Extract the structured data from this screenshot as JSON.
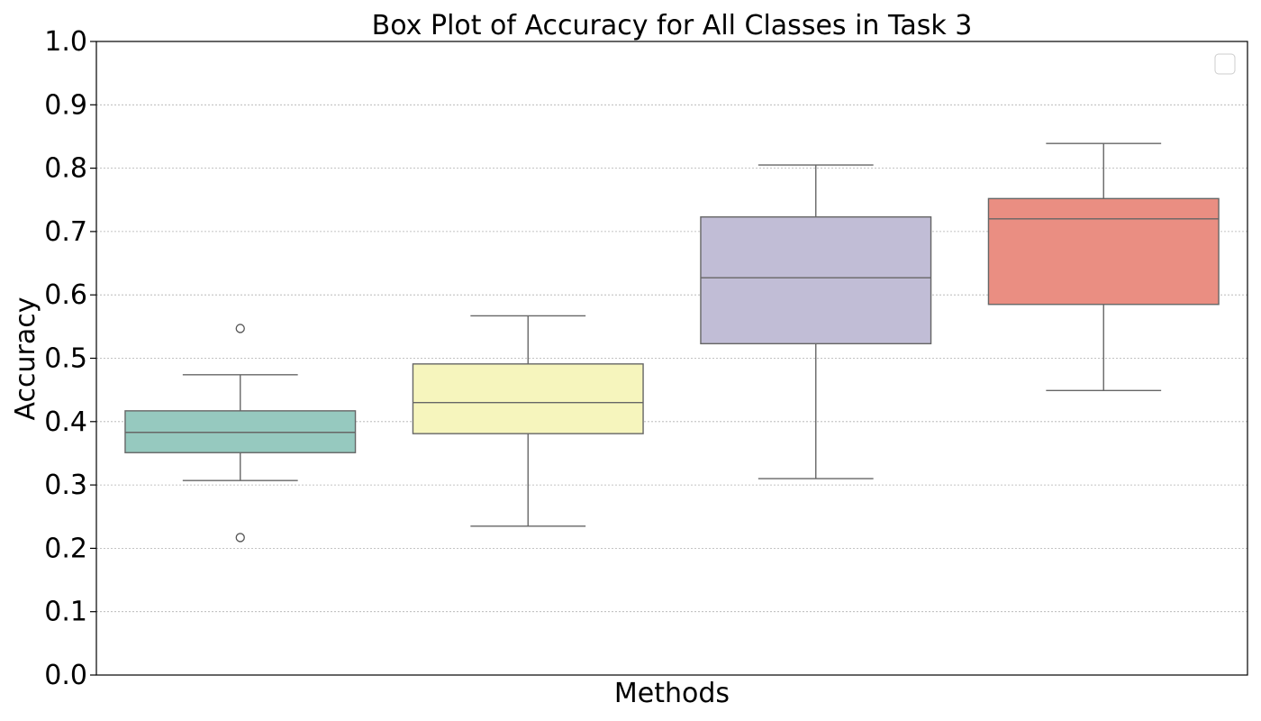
{
  "chart_data": {
    "type": "box",
    "title": "Box Plot of Accuracy for All Classes in Task 3",
    "xlabel": "Methods",
    "ylabel": "Accuracy",
    "ylim": [
      0.0,
      1.0
    ],
    "yticks": [
      "0.0",
      "0.1",
      "0.2",
      "0.3",
      "0.4",
      "0.5",
      "0.6",
      "0.7",
      "0.8",
      "0.9",
      "1.0"
    ],
    "grid": "horizontal-dotted",
    "legend": {
      "placement": "top-right",
      "entries": []
    },
    "boxes": [
      {
        "whisker_low": 0.307,
        "q1": 0.351,
        "median": 0.383,
        "q3": 0.417,
        "whisker_high": 0.474,
        "outliers": [
          0.217,
          0.547
        ],
        "color": "#96c9bf"
      },
      {
        "whisker_low": 0.235,
        "q1": 0.381,
        "median": 0.43,
        "q3": 0.491,
        "whisker_high": 0.567,
        "outliers": [],
        "color": "#f6f5bd"
      },
      {
        "whisker_low": 0.31,
        "q1": 0.523,
        "median": 0.627,
        "q3": 0.723,
        "whisker_high": 0.805,
        "outliers": [],
        "color": "#c1bdd6"
      },
      {
        "whisker_low": 0.449,
        "q1": 0.585,
        "median": 0.72,
        "q3": 0.752,
        "whisker_high": 0.839,
        "outliers": [],
        "color": "#ea8e82"
      }
    ]
  }
}
